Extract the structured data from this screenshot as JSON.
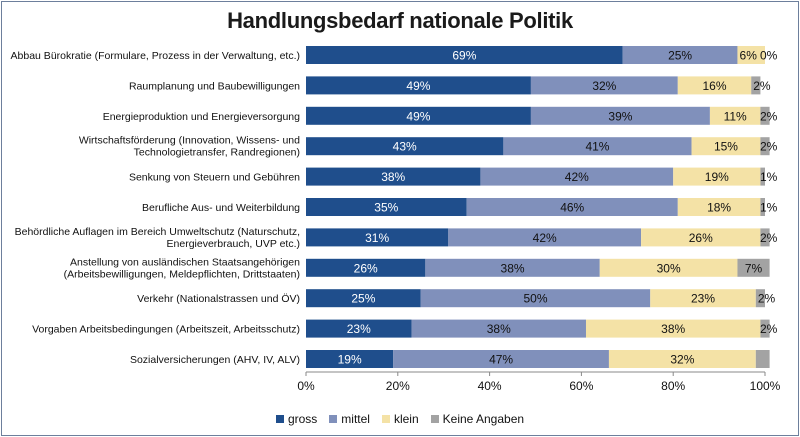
{
  "chart_data": {
    "type": "bar",
    "orientation": "horizontal",
    "stacked": true,
    "title": "Handlungsbedarf nationale Politik",
    "categories": [
      "Abbau Bürokratie (Formulare, Prozess in der Verwaltung, etc.)",
      "Raumplanung und Baubewilligungen",
      "Energieproduktion und Energieversorgung",
      "Wirtschaftsförderung (Innovation, Wissens- und Technologietransfer, Randregionen)",
      "Senkung von Steuern und Gebühren",
      "Berufliche Aus- und Weiterbildung",
      "Behördliche Auflagen im Bereich Umweltschutz (Naturschutz, Energieverbrauch, UVP etc.)",
      "Anstellung von ausländischen Staatsangehörigen (Arbeitsbewilligungen, Meldepflichten, Drittstaaten)",
      "Verkehr (Nationalstrassen und ÖV)",
      "Vorgaben Arbeitsbedingungen (Arbeitszeit, Arbeitsschutz)",
      "Sozialversicherungen (AHV, IV, ALV)"
    ],
    "category_lines": [
      [
        "Abbau Bürokratie (Formulare, Prozess in der Verwaltung, etc.)"
      ],
      [
        "Raumplanung und Baubewilligungen"
      ],
      [
        "Energieproduktion und Energieversorgung"
      ],
      [
        "Wirtschaftsförderung (Innovation, Wissens- und",
        "Technologietransfer, Randregionen)"
      ],
      [
        "Senkung von Steuern und Gebühren"
      ],
      [
        "Berufliche Aus- und Weiterbildung"
      ],
      [
        "Behördliche Auflagen im Bereich Umweltschutz (Naturschutz,",
        "Energieverbrauch, UVP etc.)"
      ],
      [
        "Anstellung von ausländischen Staatsangehörigen",
        "(Arbeitsbewilligungen, Meldepflichten, Drittstaaten)"
      ],
      [
        "Verkehr (Nationalstrassen und ÖV)"
      ],
      [
        "Vorgaben Arbeitsbedingungen (Arbeitszeit, Arbeitsschutz)"
      ],
      [
        "Sozialversicherungen (AHV, IV, ALV)"
      ]
    ],
    "series": [
      {
        "name": "gross",
        "color": "#1f4e8c",
        "values": [
          69,
          49,
          49,
          43,
          38,
          35,
          31,
          26,
          25,
          23,
          19
        ],
        "labels": [
          "69%",
          "49%",
          "49%",
          "43%",
          "38%",
          "35%",
          "31%",
          "26%",
          "25%",
          "23%",
          "19%"
        ]
      },
      {
        "name": "mittel",
        "color": "#8090bb",
        "values": [
          25,
          32,
          39,
          41,
          42,
          46,
          42,
          38,
          50,
          38,
          47
        ],
        "labels": [
          "25%",
          "32%",
          "39%",
          "41%",
          "42%",
          "46%",
          "42%",
          "38%",
          "50%",
          "38%",
          "47%"
        ]
      },
      {
        "name": "klein",
        "color": "#f4e2a6",
        "values": [
          6,
          16,
          11,
          15,
          19,
          18,
          26,
          30,
          23,
          38,
          32
        ],
        "labels": [
          "6%",
          "16%",
          "11%",
          "15%",
          "19%",
          "18%",
          "26%",
          "30%",
          "23%",
          "38%",
          "32%"
        ]
      },
      {
        "name": "Keine Angaben",
        "color": "#a3a3a3",
        "values": [
          0,
          2,
          2,
          2,
          1,
          1,
          2,
          7,
          2,
          2,
          3
        ],
        "labels": [
          "0%",
          "2%",
          "2%",
          "2%",
          "1%",
          "1%",
          "2%",
          "7%",
          "2%",
          "2%",
          ""
        ]
      }
    ],
    "xlim": [
      0,
      100
    ],
    "xticks": [
      "0%",
      "20%",
      "40%",
      "60%",
      "80%",
      "100%"
    ],
    "xtick_values": [
      0,
      20,
      40,
      60,
      80,
      100
    ],
    "grid": false,
    "legend_position": "bottom"
  }
}
